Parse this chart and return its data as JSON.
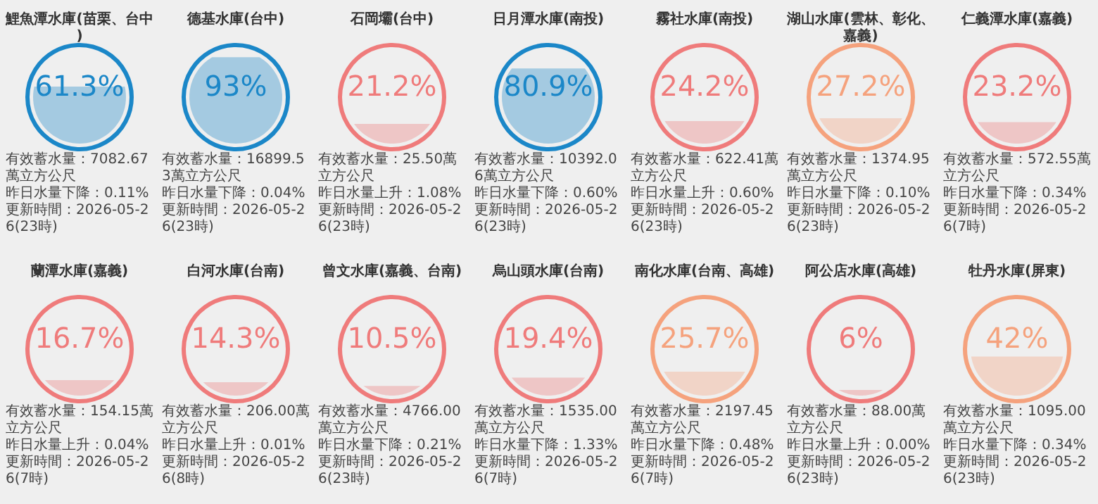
{
  "chart_data": [
    {
      "type": "other",
      "title": "鯉魚潭水庫(苗栗、台中)",
      "values": [
        61.3
      ],
      "value_labels": [
        "61.3%"
      ],
      "color": "#1b87c8",
      "annotations": [
        "有效蓄水量：7082.67萬立方公尺",
        "昨日水量下降：0.11%",
        "更新時間：2026-05-26(23時)"
      ]
    },
    {
      "type": "other",
      "title": "德基水庫(台中)",
      "values": [
        93
      ],
      "value_labels": [
        "93%"
      ],
      "color": "#1b87c8",
      "annotations": [
        "有效蓄水量：16899.53萬立方公尺",
        "昨日水量下降：0.04%",
        "更新時間：2026-05-26(23時)"
      ]
    },
    {
      "type": "other",
      "title": "石岡壩(台中)",
      "values": [
        21.2
      ],
      "value_labels": [
        "21.2%"
      ],
      "color": "#ef7b7b",
      "annotations": [
        "有效蓄水量：25.50萬立方公尺",
        "昨日水量上升：1.08%",
        "更新時間：2026-05-26(23時)"
      ]
    },
    {
      "type": "other",
      "title": "日月潭水庫(南投)",
      "values": [
        80.9
      ],
      "value_labels": [
        "80.9%"
      ],
      "color": "#1b87c8",
      "annotations": [
        "有效蓄水量：10392.06萬立方公尺",
        "昨日水量下降：0.60%",
        "更新時間：2026-05-26(23時)"
      ]
    },
    {
      "type": "other",
      "title": "霧社水庫(南投)",
      "values": [
        24.2
      ],
      "value_labels": [
        "24.2%"
      ],
      "color": "#ef7b7b",
      "annotations": [
        "有效蓄水量：622.41萬立方公尺",
        "昨日水量上升：0.60%",
        "更新時間：2026-05-26(23時)"
      ]
    },
    {
      "type": "other",
      "title": "湖山水庫(雲林、彰化、嘉義)",
      "values": [
        27.2
      ],
      "value_labels": [
        "27.2%"
      ],
      "color": "#f5a27d",
      "annotations": [
        "有效蓄水量：1374.95萬立方公尺",
        "昨日水量下降：0.10%",
        "更新時間：2026-05-26(23時)"
      ]
    },
    {
      "type": "other",
      "title": "仁義潭水庫(嘉義)",
      "values": [
        23.2
      ],
      "value_labels": [
        "23.2%"
      ],
      "color": "#ef7b7b",
      "annotations": [
        "有效蓄水量：572.55萬立方公尺",
        "昨日水量下降：0.34%",
        "更新時間：2026-05-26(7時)"
      ]
    },
    {
      "type": "other",
      "title": "蘭潭水庫(嘉義)",
      "values": [
        16.7
      ],
      "value_labels": [
        "16.7%"
      ],
      "color": "#ef7b7b",
      "annotations": [
        "有效蓄水量：154.15萬立方公尺",
        "昨日水量上升：0.04%",
        "更新時間：2026-05-26(7時)"
      ]
    },
    {
      "type": "other",
      "title": "白河水庫(台南)",
      "values": [
        14.3
      ],
      "value_labels": [
        "14.3%"
      ],
      "color": "#ef7b7b",
      "annotations": [
        "有效蓄水量：206.00萬立方公尺",
        "昨日水量上升：0.01%",
        "更新時間：2026-05-26(8時)"
      ]
    },
    {
      "type": "other",
      "title": "曾文水庫(嘉義、台南)",
      "values": [
        10.5
      ],
      "value_labels": [
        "10.5%"
      ],
      "color": "#ef7b7b",
      "annotations": [
        "有效蓄水量：4766.00萬立方公尺",
        "昨日水量下降：0.21%",
        "更新時間：2026-05-26(23時)"
      ]
    },
    {
      "type": "other",
      "title": "烏山頭水庫(台南)",
      "values": [
        19.4
      ],
      "value_labels": [
        "19.4%"
      ],
      "color": "#ef7b7b",
      "annotations": [
        "有效蓄水量：1535.00萬立方公尺",
        "昨日水量下降：1.33%",
        "更新時間：2026-05-26(7時)"
      ]
    },
    {
      "type": "other",
      "title": "南化水庫(台南、高雄)",
      "values": [
        25.7
      ],
      "value_labels": [
        "25.7%"
      ],
      "color": "#f5a27d",
      "annotations": [
        "有效蓄水量：2197.45萬立方公尺",
        "昨日水量下降：0.48%",
        "更新時間：2026-05-26(7時)"
      ]
    },
    {
      "type": "other",
      "title": "阿公店水庫(高雄)",
      "values": [
        6
      ],
      "value_labels": [
        "6%"
      ],
      "color": "#ef7b7b",
      "annotations": [
        "有效蓄水量：88.00萬立方公尺",
        "昨日水量上升：0.00%",
        "更新時間：2026-05-26(23時)"
      ]
    },
    {
      "type": "other",
      "title": "牡丹水庫(屏東)",
      "values": [
        42
      ],
      "value_labels": [
        "42%"
      ],
      "color": "#f5a27d",
      "annotations": [
        "有效蓄水量：1095.00萬立方公尺",
        "昨日水量下降：0.34%",
        "更新時間：2026-05-26(23時)"
      ]
    }
  ]
}
